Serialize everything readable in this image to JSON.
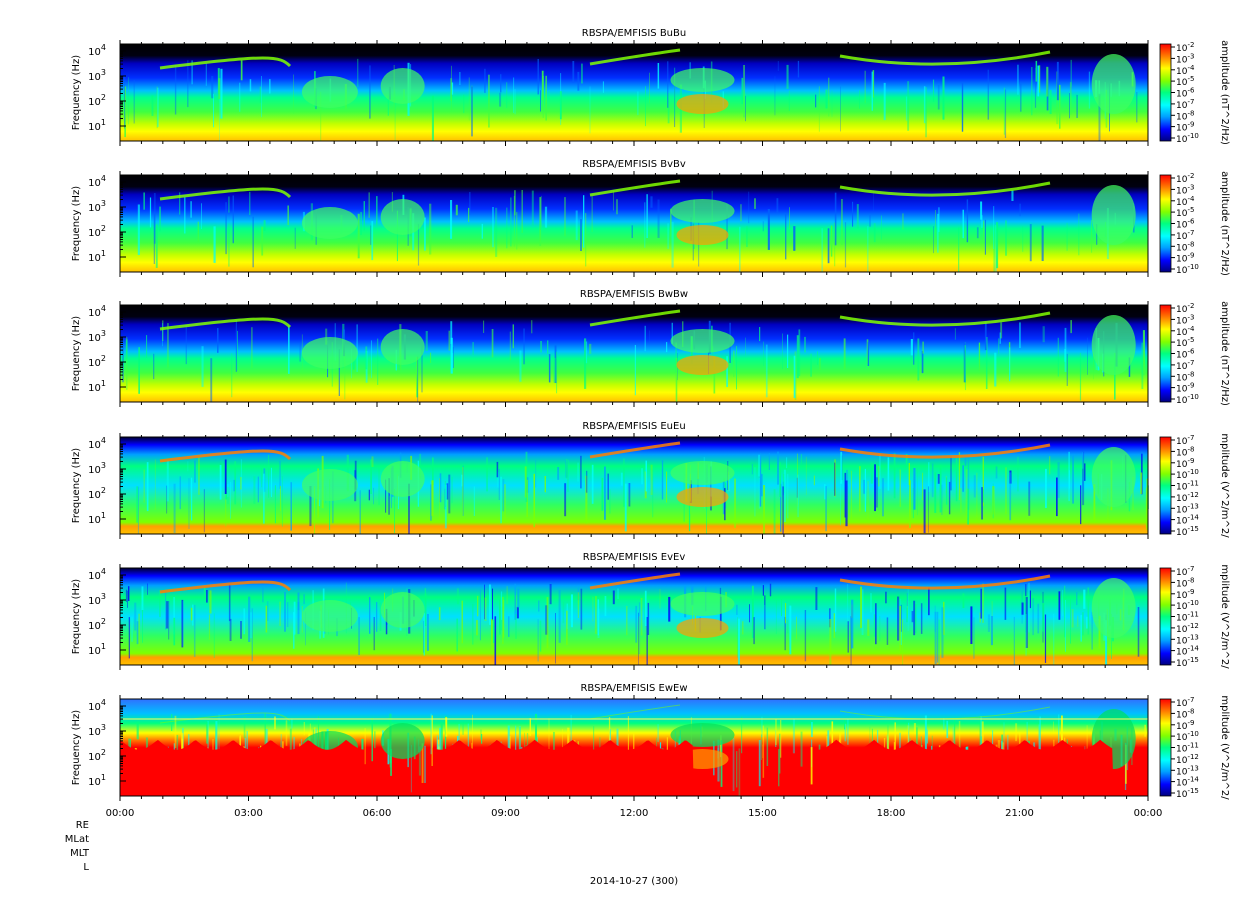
{
  "figure": {
    "xlabel": "2014-10-27 (300)",
    "x_ticks": [
      "00:00",
      "03:00",
      "06:00",
      "09:00",
      "12:00",
      "15:00",
      "18:00",
      "21:00",
      "00:00"
    ],
    "ephemeris_labels": [
      "RE",
      "MLat",
      "MLT",
      "L"
    ]
  },
  "colors": {
    "spectrum": [
      "#000080",
      "#0000ff",
      "#00a0ff",
      "#00ffff",
      "#00ff80",
      "#80ff00",
      "#ffff00",
      "#ff8000",
      "#ff0000"
    ],
    "fill_level": "#000000"
  },
  "chart_data": [
    {
      "type": "heatmap",
      "title": "RBSPA/EMFISIS  BuBu",
      "ylabel": "Frequency (Hz)",
      "yscale": "log",
      "yticks": [
        "10",
        "10",
        "10",
        "10"
      ],
      "ytick_exps": [
        "1",
        "2",
        "3",
        "4"
      ],
      "x_range_hours": [
        0,
        24
      ],
      "colorbar": {
        "label": "amplitude (nT^2/Hz)",
        "scale": "log",
        "ticks_base": "10",
        "ticks_exp": [
          "-2",
          "-3",
          "-4",
          "-5",
          "-6",
          "-7",
          "-8",
          "-9",
          "-10"
        ]
      }
    },
    {
      "type": "heatmap",
      "title": "RBSPA/EMFISIS  BvBv",
      "ylabel": "Frequency (Hz)",
      "yscale": "log",
      "yticks": [
        "10",
        "10",
        "10",
        "10"
      ],
      "ytick_exps": [
        "1",
        "2",
        "3",
        "4"
      ],
      "x_range_hours": [
        0,
        24
      ],
      "colorbar": {
        "label": "amplitude (nT^2/Hz)",
        "scale": "log",
        "ticks_base": "10",
        "ticks_exp": [
          "-2",
          "-3",
          "-4",
          "-5",
          "-6",
          "-7",
          "-8",
          "-9",
          "-10"
        ]
      }
    },
    {
      "type": "heatmap",
      "title": "RBSPA/EMFISIS  BwBw",
      "ylabel": "Frequency (Hz)",
      "yscale": "log",
      "yticks": [
        "10",
        "10",
        "10",
        "10"
      ],
      "ytick_exps": [
        "1",
        "2",
        "3",
        "4"
      ],
      "x_range_hours": [
        0,
        24
      ],
      "colorbar": {
        "label": "amplitude (nT^2/Hz)",
        "scale": "log",
        "ticks_base": "10",
        "ticks_exp": [
          "-2",
          "-3",
          "-4",
          "-5",
          "-6",
          "-7",
          "-8",
          "-9",
          "-10"
        ]
      }
    },
    {
      "type": "heatmap",
      "title": "RBSPA/EMFISIS  EuEu",
      "ylabel": "Frequency (Hz)",
      "yscale": "log",
      "yticks": [
        "10",
        "10",
        "10",
        "10"
      ],
      "ytick_exps": [
        "1",
        "2",
        "3",
        "4"
      ],
      "x_range_hours": [
        0,
        24
      ],
      "colorbar": {
        "label": "mplitude (V^2/m^2/",
        "scale": "log",
        "ticks_base": "10",
        "ticks_exp": [
          "-7",
          "-8",
          "-9",
          "-10",
          "-11",
          "-12",
          "-13",
          "-14",
          "-15"
        ]
      }
    },
    {
      "type": "heatmap",
      "title": "RBSPA/EMFISIS  EvEv",
      "ylabel": "Frequency (Hz)",
      "yscale": "log",
      "yticks": [
        "10",
        "10",
        "10",
        "10"
      ],
      "ytick_exps": [
        "1",
        "2",
        "3",
        "4"
      ],
      "x_range_hours": [
        0,
        24
      ],
      "colorbar": {
        "label": "mplitude (V^2/m^2/",
        "scale": "log",
        "ticks_base": "10",
        "ticks_exp": [
          "-7",
          "-8",
          "-9",
          "-10",
          "-11",
          "-12",
          "-13",
          "-14",
          "-15"
        ]
      }
    },
    {
      "type": "heatmap",
      "title": "RBSPA/EMFISIS  EwEw",
      "ylabel": "Frequency (Hz)",
      "yscale": "log",
      "yticks": [
        "10",
        "10",
        "10",
        "10"
      ],
      "ytick_exps": [
        "1",
        "2",
        "3",
        "4"
      ],
      "x_range_hours": [
        0,
        24
      ],
      "colorbar": {
        "label": "mplitude (V^2/m^2/",
        "scale": "log",
        "ticks_base": "10",
        "ticks_exp": [
          "-7",
          "-8",
          "-9",
          "-10",
          "-11",
          "-12",
          "-13",
          "-14",
          "-15"
        ]
      }
    }
  ]
}
